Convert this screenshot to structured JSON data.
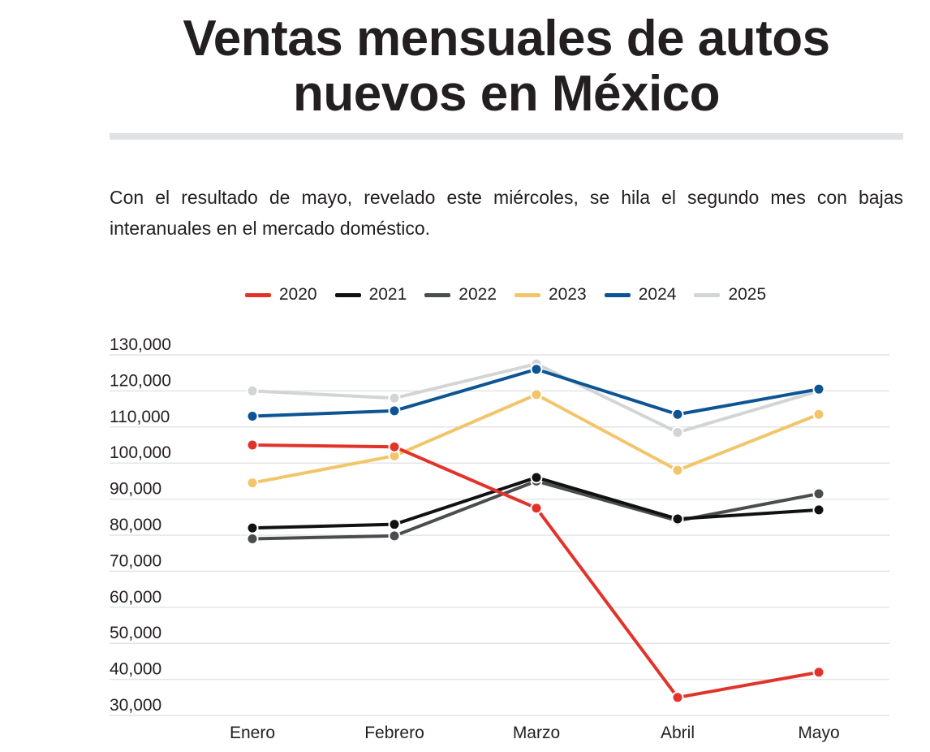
{
  "header": {
    "title": "Ventas mensuales de autos\nnuevos en México",
    "subtitle": "Con el resultado de mayo, revelado este miércoles, se hila el segundo mes con bajas interanuales en el mercado doméstico."
  },
  "chart_data": {
    "type": "line",
    "categories": [
      "Enero",
      "Febrero",
      "Marzo",
      "Abril",
      "Mayo"
    ],
    "ylim": [
      30000,
      130000
    ],
    "yticks": [
      30000,
      40000,
      50000,
      60000,
      70000,
      80000,
      90000,
      100000,
      110000,
      120000,
      130000
    ],
    "ytick_labels": [
      "30,000",
      "40,000",
      "50,000",
      "60,000",
      "70,000",
      "80,000",
      "90,000",
      "100,000",
      "110,000",
      "120,000",
      "130,000"
    ],
    "grid": true,
    "legend_position": "top-center",
    "series": [
      {
        "name": "2020",
        "color": "#e2332b",
        "values": [
          105000,
          104500,
          87500,
          35000,
          42000
        ]
      },
      {
        "name": "2021",
        "color": "#111111",
        "values": [
          82000,
          83000,
          96000,
          84500,
          87000
        ]
      },
      {
        "name": "2022",
        "color": "#4a4c50",
        "values": [
          79000,
          79800,
          95000,
          84000,
          91500
        ]
      },
      {
        "name": "2023",
        "color": "#f2c56b",
        "values": [
          94500,
          102000,
          119000,
          98000,
          113500
        ]
      },
      {
        "name": "2024",
        "color": "#0d5495",
        "values": [
          113000,
          114500,
          126000,
          113500,
          120500
        ]
      },
      {
        "name": "2025",
        "color": "#d2d4d6",
        "values": [
          120000,
          118000,
          127500,
          108500,
          120000
        ]
      }
    ]
  }
}
